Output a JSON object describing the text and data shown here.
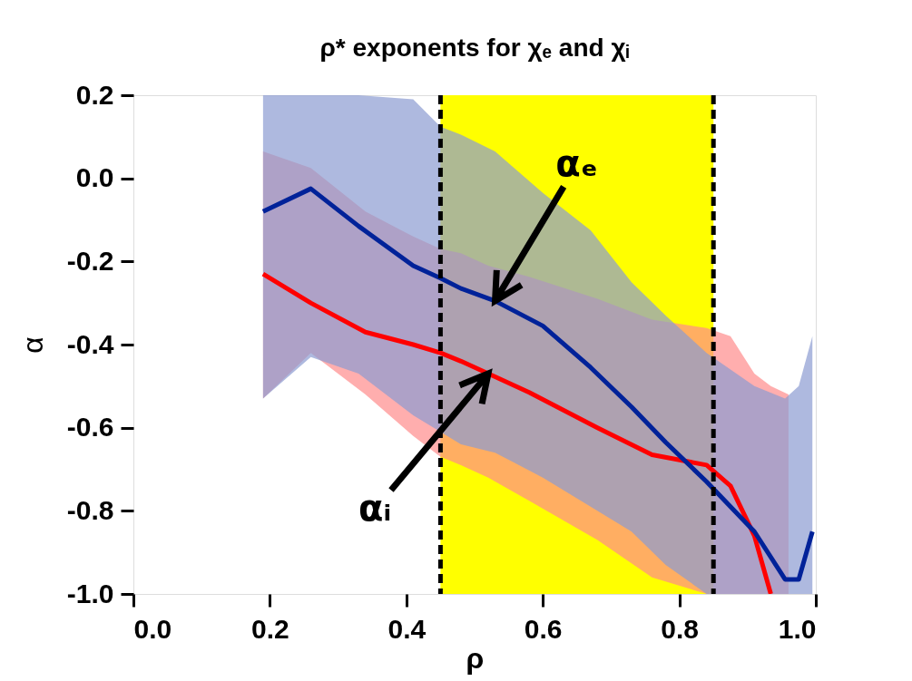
{
  "chart_data": {
    "type": "line",
    "title": "ρ* exponents for χₑ and χᵢ",
    "xlabel": "ρ",
    "ylabel": "α",
    "xlim": [
      0.0,
      1.0
    ],
    "xticks": [
      {
        "value": 0.0,
        "label": "0.0"
      },
      {
        "value": 0.2,
        "label": "0.2"
      },
      {
        "value": 0.4,
        "label": "0.4"
      },
      {
        "value": 0.6,
        "label": "0.6"
      },
      {
        "value": 0.8,
        "label": "0.8"
      },
      {
        "value": 1.0,
        "label": "1.0"
      }
    ],
    "ylim": [
      -1.0,
      0.2
    ],
    "yticks": [
      {
        "value": -1.0,
        "label": "-1.0"
      },
      {
        "value": -0.8,
        "label": "-0.8"
      },
      {
        "value": -0.6,
        "label": "-0.6"
      },
      {
        "value": -0.4,
        "label": "-0.4"
      },
      {
        "value": -0.2,
        "label": "-0.2"
      },
      {
        "value": 0.0,
        "label": "0.0"
      },
      {
        "value": 0.2,
        "label": "0.2"
      }
    ],
    "grid": false,
    "legend": false,
    "marker": "none",
    "line_style": "solid",
    "bands": [
      {
        "axis": "x",
        "from": 0.45,
        "to": 0.85,
        "color": "#ffff00"
      }
    ],
    "ref_lines": [
      {
        "axis": "x",
        "value": 0.45,
        "color": "#000000",
        "line_style": "dashed"
      },
      {
        "axis": "x",
        "value": 0.85,
        "color": "#000000",
        "line_style": "dashed"
      }
    ],
    "series": [
      {
        "color": "#ff0000",
        "x": [
          0.19,
          0.26,
          0.34,
          0.41,
          0.45,
          0.48,
          0.52,
          0.58,
          0.68,
          0.76,
          0.84,
          0.875,
          0.91,
          0.934,
          0.96
        ],
        "values": [
          -0.23,
          -0.3,
          -0.37,
          -0.4,
          -0.42,
          -0.44,
          -0.47,
          -0.515,
          -0.6,
          -0.665,
          -0.69,
          -0.74,
          -0.86,
          -1.0,
          null
        ],
        "upper": [
          0.065,
          0.025,
          -0.08,
          -0.14,
          -0.17,
          -0.18,
          -0.21,
          -0.237,
          -0.29,
          -0.34,
          -0.36,
          -0.38,
          -0.47,
          -0.5,
          -0.52
        ],
        "lower": [
          -0.53,
          -0.42,
          -0.52,
          -0.62,
          -0.67,
          -0.69,
          -0.72,
          -0.776,
          -0.87,
          -0.96,
          -1.0,
          -1.0,
          -1.0,
          -1.0,
          -1.0
        ]
      },
      {
        "color": "#002299",
        "x": [
          0.19,
          0.26,
          0.33,
          0.41,
          0.45,
          0.48,
          0.53,
          0.6,
          0.67,
          0.73,
          0.78,
          0.84,
          0.91,
          0.955,
          0.975,
          0.995
        ],
        "values": [
          -0.08,
          -0.025,
          -0.115,
          -0.21,
          -0.24,
          -0.265,
          -0.295,
          -0.355,
          -0.455,
          -0.55,
          -0.635,
          -0.73,
          -0.85,
          -0.965,
          -0.965,
          -0.85
        ],
        "upper": [
          0.2,
          0.2,
          0.2,
          0.19,
          0.124,
          0.105,
          0.065,
          -0.035,
          -0.125,
          -0.25,
          -0.33,
          -0.42,
          -0.5,
          -0.53,
          -0.5,
          -0.38
        ],
        "lower": [
          -0.53,
          -0.43,
          -0.47,
          -0.57,
          -0.61,
          -0.64,
          -0.66,
          -0.72,
          -0.79,
          -0.85,
          -0.93,
          -1.0,
          -1.0,
          -1.0,
          -1.0,
          -1.0
        ]
      }
    ],
    "annotations": [
      {
        "text": "αₑ",
        "x": 0.53,
        "y": -0.295
      },
      {
        "text": "αᵢ",
        "x": 0.52,
        "y": -0.47
      }
    ]
  }
}
